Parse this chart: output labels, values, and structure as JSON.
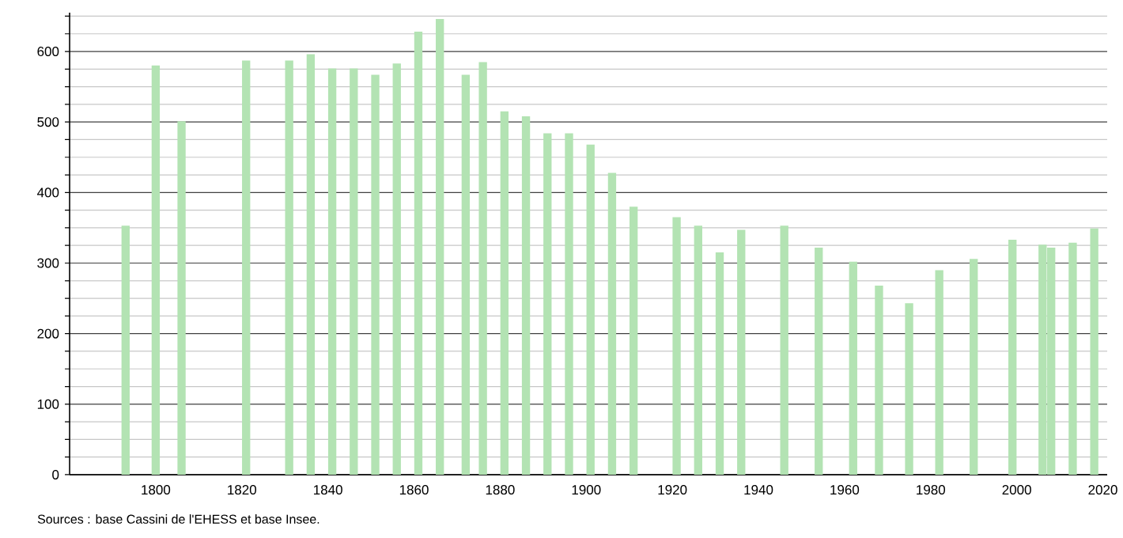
{
  "chart_data": {
    "type": "bar",
    "color": "#b3e3b3",
    "x": [
      1793,
      1800,
      1806,
      1821,
      1831,
      1836,
      1841,
      1846,
      1851,
      1856,
      1861,
      1866,
      1872,
      1876,
      1881,
      1886,
      1891,
      1896,
      1901,
      1906,
      1911,
      1921,
      1926,
      1931,
      1936,
      1946,
      1954,
      1962,
      1968,
      1975,
      1982,
      1990,
      1999,
      2006,
      2008,
      2013,
      2018
    ],
    "values": [
      353,
      580,
      501,
      587,
      587,
      596,
      576,
      576,
      567,
      583,
      628,
      646,
      567,
      585,
      515,
      508,
      484,
      484,
      468,
      428,
      380,
      365,
      353,
      315,
      347,
      353,
      322,
      302,
      268,
      243,
      290,
      306,
      333,
      326,
      322,
      329,
      349
    ],
    "xlim": [
      1780,
      2021
    ],
    "xticks": [
      1800,
      1820,
      1840,
      1860,
      1880,
      1900,
      1920,
      1940,
      1960,
      1980,
      2000,
      2020
    ],
    "ylim": [
      0,
      655
    ],
    "yticks": [
      0,
      {
        "value": 25,
        "label": null
      },
      {
        "value": 50,
        "label": null
      },
      {
        "value": 75,
        "label": null
      },
      100,
      {
        "value": 125,
        "label": null
      },
      {
        "value": 150,
        "label": null
      },
      {
        "value": 175,
        "label": null
      },
      200,
      {
        "value": 225,
        "label": null
      },
      {
        "value": 250,
        "label": null
      },
      {
        "value": 275,
        "label": null
      },
      300,
      {
        "value": 325,
        "label": null
      },
      {
        "value": 350,
        "label": null
      },
      {
        "value": 375,
        "label": null
      },
      400,
      {
        "value": 425,
        "label": null
      },
      {
        "value": 450,
        "label": null
      },
      {
        "value": 475,
        "label": null
      },
      500,
      {
        "value": 525,
        "label": null
      },
      {
        "value": 550,
        "label": null
      },
      {
        "value": 575,
        "label": null
      },
      600,
      {
        "value": 625,
        "label": null
      },
      {
        "value": 650,
        "label": null
      }
    ],
    "grid": "y",
    "annotations": [
      "Sources : base Cassini de l'EHESS et base Insee."
    ]
  }
}
